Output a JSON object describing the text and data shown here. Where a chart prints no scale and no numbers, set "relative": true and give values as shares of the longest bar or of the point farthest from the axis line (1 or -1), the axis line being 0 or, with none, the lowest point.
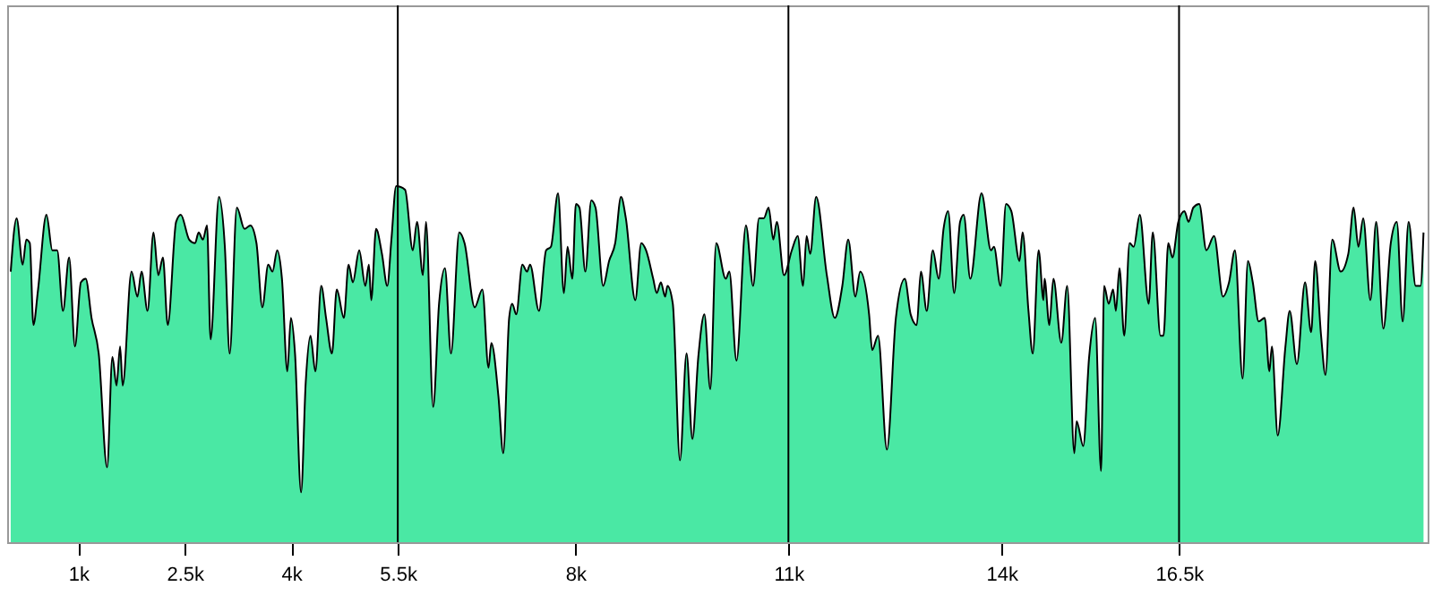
{
  "chart_data": {
    "type": "area",
    "relative": true,
    "x": [
      50,
      133,
      219,
      269,
      319,
      369,
      435,
      553,
      636,
      704,
      786,
      872,
      955,
      1038,
      1106,
      1188,
      1289,
      1407,
      1482,
      1540,
      1590,
      1626,
      1751,
      1834,
      1892,
      1977,
      2060,
      2128,
      2193,
      2261,
      2379,
      2445,
      2563,
      2646,
      2696,
      2756,
      2814,
      2864,
      2982,
      3065,
      3133,
      3234,
      3342,
      3425,
      3510,
      3593,
      3676,
      3736,
      3802,
      3869,
      3945,
      3995,
      4053,
      4138,
      4204,
      4271,
      4339,
      4422,
      4490,
      4573,
      4641,
      4741,
      4807,
      4867,
      4957,
      5043,
      5093,
      5126,
      5194,
      5277,
      5352,
      5410,
      5477,
      5603,
      5711,
      5771,
      5854,
      5897,
      5998,
      6081,
      6164,
      6249,
      6365,
      6440,
      6583,
      6691,
      6777,
      6817,
      6917,
      6985,
      7068,
      7111,
      7168,
      7254,
      7319,
      7362,
      7488,
      7588,
      7656,
      7756,
      7839,
      7890,
      7957,
      8008,
      8058,
      8141,
      8224,
      8284,
      8392,
      8475,
      8561,
      8643,
      8711,
      8844,
      8928,
      8995,
      9096,
      9146,
      9204,
      9264,
      9297,
      9372,
      9473,
      9566,
      9648,
      9731,
      9817,
      9900,
      9983,
      10118,
      10168,
      10269,
      10402,
      10503,
      10586,
      10653,
      10721,
      10787,
      10837,
      10938,
      11048,
      11131,
      11206,
      11256,
      11307,
      11390,
      11541,
      11653,
      11759,
      11842,
      11943,
      12010,
      12136,
      12179,
      12262,
      12387,
      12513,
      12638,
      12721,
      12807,
      12865,
      12948,
      13033,
      13116,
      13184,
      13249,
      13334,
      13417,
      13468,
      13561,
      13719,
      13852,
      13894,
      13987,
      14063,
      14138,
      14254,
      14297,
      14380,
      14440,
      14523,
      14591,
      14606,
      14674,
      14731,
      14842,
      14925,
      15025,
      15058,
      15151,
      15234,
      15319,
      15402,
      15445,
      15510,
      15571,
      15611,
      15661,
      15728,
      15804,
      15862,
      15947,
      16073,
      16130,
      16239,
      16281,
      16349,
      16407,
      16490,
      16576,
      16634,
      16701,
      16784,
      16885,
      16993,
      17119,
      17204,
      17287,
      17395,
      17470,
      17538,
      17621,
      17706,
      17772,
      17807,
      17890,
      17998,
      18058,
      18159,
      18274,
      18360,
      18417,
      18500,
      18561,
      18657,
      18776,
      18883,
      18958,
      19025,
      19093,
      19194,
      19276,
      19377,
      19481,
      19566,
      19649,
      19732,
      19832,
      19900,
      19942
    ],
    "series": [
      {
        "color": "#4ae8a4",
        "values": [
          0.76,
          0.91,
          0.78,
          0.85,
          0.84,
          0.61,
          0.71,
          0.92,
          0.82,
          0.82,
          0.65,
          0.8,
          0.55,
          0.73,
          0.74,
          0.63,
          0.53,
          0.21,
          0.52,
          0.44,
          0.55,
          0.44,
          0.76,
          0.69,
          0.76,
          0.65,
          0.87,
          0.75,
          0.8,
          0.61,
          0.9,
          0.92,
          0.85,
          0.84,
          0.87,
          0.85,
          0.89,
          0.57,
          0.97,
          0.83,
          0.53,
          0.94,
          0.88,
          0.89,
          0.84,
          0.66,
          0.78,
          0.76,
          0.82,
          0.74,
          0.48,
          0.63,
          0.53,
          0.14,
          0.45,
          0.58,
          0.48,
          0.72,
          0.63,
          0.53,
          0.71,
          0.63,
          0.78,
          0.73,
          0.82,
          0.72,
          0.78,
          0.68,
          0.88,
          0.81,
          0.72,
          0.85,
          1,
          0.99,
          0.82,
          0.9,
          0.75,
          0.9,
          0.38,
          0.67,
          0.77,
          0.53,
          0.87,
          0.84,
          0.66,
          0.71,
          0.49,
          0.56,
          0.41,
          0.25,
          0.63,
          0.67,
          0.64,
          0.78,
          0.76,
          0.78,
          0.65,
          0.82,
          0.83,
          0.98,
          0.7,
          0.83,
          0.74,
          0.95,
          0.94,
          0.76,
          0.96,
          0.94,
          0.72,
          0.79,
          0.84,
          0.97,
          0.91,
          0.68,
          0.84,
          0.82,
          0.74,
          0.7,
          0.73,
          0.69,
          0.72,
          0.67,
          0.23,
          0.53,
          0.29,
          0.52,
          0.64,
          0.43,
          0.84,
          0.74,
          0.76,
          0.51,
          0.89,
          0.72,
          0.91,
          0.91,
          0.94,
          0.85,
          0.9,
          0.75,
          0.82,
          0.86,
          0.72,
          0.86,
          0.81,
          0.97,
          0.75,
          0.63,
          0.72,
          0.85,
          0.69,
          0.76,
          0.64,
          0.54,
          0.58,
          0.26,
          0.63,
          0.74,
          0.64,
          0.61,
          0.76,
          0.65,
          0.82,
          0.74,
          0.88,
          0.93,
          0.7,
          0.9,
          0.92,
          0.74,
          0.98,
          0.82,
          0.83,
          0.72,
          0.95,
          0.93,
          0.79,
          0.87,
          0.65,
          0.53,
          0.82,
          0.68,
          0.74,
          0.61,
          0.74,
          0.56,
          0.72,
          0.25,
          0.34,
          0.27,
          0.52,
          0.63,
          0.2,
          0.72,
          0.67,
          0.71,
          0.65,
          0.77,
          0.58,
          0.84,
          0.83,
          0.92,
          0.67,
          0.87,
          0.58,
          0.58,
          0.84,
          0.8,
          0.9,
          0.93,
          0.9,
          0.94,
          0.95,
          0.82,
          0.86,
          0.69,
          0.73,
          0.82,
          0.46,
          0.79,
          0.73,
          0.62,
          0.63,
          0.48,
          0.55,
          0.3,
          0.55,
          0.65,
          0.5,
          0.73,
          0.59,
          0.79,
          0.58,
          0.47,
          0.85,
          0.76,
          0.81,
          0.94,
          0.83,
          0.91,
          0.68,
          0.9,
          0.6,
          0.84,
          0.9,
          0.62,
          0.9,
          0.72,
          0.72,
          0.87
        ]
      }
    ],
    "xlim": [
      0,
      20000
    ],
    "xticks": [
      {
        "value": 1000,
        "label": "1k"
      },
      {
        "value": 2500,
        "label": "2.5k"
      },
      {
        "value": 4000,
        "label": "4k"
      },
      {
        "value": 5500,
        "label": "5.5k"
      },
      {
        "value": 8000,
        "label": "8k"
      },
      {
        "value": 11000,
        "label": "11k"
      },
      {
        "value": 14000,
        "label": "14k"
      },
      {
        "value": 16500,
        "label": "16.5k"
      }
    ],
    "ref_lines": [
      {
        "axis": "x",
        "value": 5500,
        "color": "#000000"
      },
      {
        "axis": "x",
        "value": 11000,
        "color": "#000000"
      },
      {
        "axis": "x",
        "value": 16500,
        "color": "#000000"
      }
    ]
  }
}
